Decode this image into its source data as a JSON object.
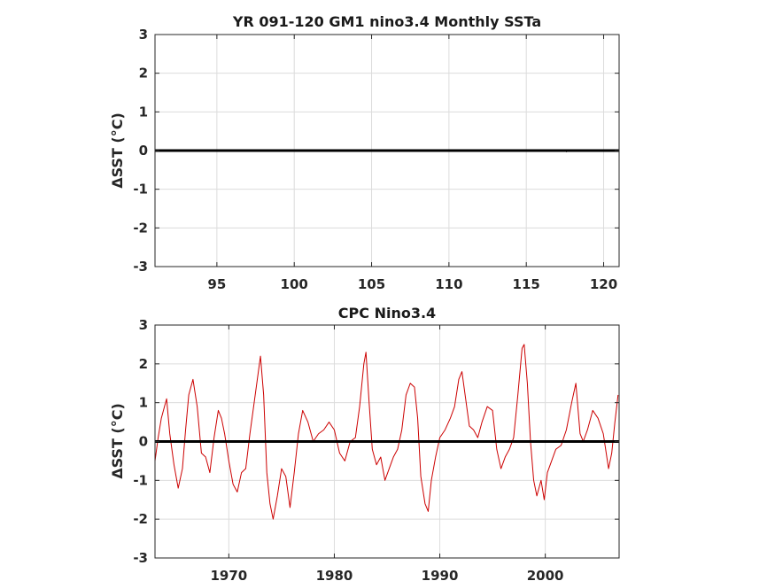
{
  "chart_data": [
    {
      "type": "line",
      "title": "YR 091-120 GM1 nino3.4 Monthly SSTa",
      "ylabel": "ΔSST (°C)",
      "xlim": [
        91,
        121
      ],
      "ylim": [
        -3,
        3
      ],
      "xticks": [
        95,
        100,
        105,
        110,
        115,
        120
      ],
      "yticks": [
        -3,
        -2,
        -1,
        0,
        1,
        2,
        3
      ],
      "grid": true,
      "zero_line": true,
      "series": [
        {
          "color": "#000000",
          "x": [
            91,
            117.5,
            117.6,
            117.7,
            121
          ],
          "y": [
            0,
            0,
            -0.03,
            0,
            0
          ]
        }
      ]
    },
    {
      "type": "line",
      "title": "CPC Nino3.4",
      "ylabel": "ΔSST (°C)",
      "xlim": [
        1963,
        2007
      ],
      "ylim": [
        -3,
        3
      ],
      "xticks": [
        1970,
        1980,
        1990,
        2000
      ],
      "yticks": [
        -3,
        -2,
        -1,
        0,
        1,
        2,
        3
      ],
      "grid": true,
      "zero_line": true,
      "series": [
        {
          "color": "#cc0000",
          "x": [
            1963.0,
            1963.3,
            1963.6,
            1963.9,
            1964.1,
            1964.4,
            1964.8,
            1965.2,
            1965.6,
            1965.9,
            1966.2,
            1966.6,
            1967.0,
            1967.4,
            1967.8,
            1968.2,
            1968.6,
            1969.0,
            1969.3,
            1969.6,
            1970.0,
            1970.4,
            1970.8,
            1971.2,
            1971.6,
            1972.0,
            1972.4,
            1972.8,
            1973.0,
            1973.3,
            1973.6,
            1973.9,
            1974.2,
            1974.6,
            1975.0,
            1975.4,
            1975.8,
            1976.2,
            1976.6,
            1977.0,
            1977.5,
            1978.0,
            1978.5,
            1979.0,
            1979.5,
            1980.0,
            1980.5,
            1981.0,
            1981.5,
            1982.0,
            1982.4,
            1982.8,
            1983.0,
            1983.3,
            1983.6,
            1984.0,
            1984.4,
            1984.8,
            1985.2,
            1985.6,
            1986.0,
            1986.4,
            1986.8,
            1987.2,
            1987.6,
            1987.9,
            1988.2,
            1988.6,
            1988.9,
            1989.2,
            1989.6,
            1990.0,
            1990.5,
            1991.0,
            1991.4,
            1991.8,
            1992.1,
            1992.4,
            1992.8,
            1993.2,
            1993.6,
            1994.0,
            1994.5,
            1995.0,
            1995.4,
            1995.8,
            1996.2,
            1996.6,
            1997.0,
            1997.4,
            1997.8,
            1998.0,
            1998.3,
            1998.6,
            1998.9,
            1999.2,
            1999.6,
            1999.9,
            2000.2,
            2000.6,
            2001.0,
            2001.5,
            2002.0,
            2002.5,
            2002.9,
            2003.3,
            2003.6,
            2004.0,
            2004.5,
            2005.0,
            2005.5,
            2006.0,
            2006.3,
            2006.6,
            2006.9
          ],
          "y": [
            -0.5,
            0.1,
            0.6,
            0.9,
            1.1,
            0.2,
            -0.6,
            -1.2,
            -0.7,
            0.3,
            1.2,
            1.6,
            0.9,
            -0.3,
            -0.4,
            -0.8,
            0.1,
            0.8,
            0.6,
            0.2,
            -0.5,
            -1.1,
            -1.3,
            -0.8,
            -0.7,
            0.2,
            1.0,
            1.8,
            2.2,
            1.2,
            -0.8,
            -1.6,
            -2.0,
            -1.4,
            -0.7,
            -0.9,
            -1.7,
            -0.8,
            0.2,
            0.8,
            0.5,
            0.0,
            0.2,
            0.3,
            0.5,
            0.3,
            -0.3,
            -0.5,
            0.0,
            0.1,
            0.9,
            2.0,
            2.3,
            1.0,
            -0.2,
            -0.6,
            -0.4,
            -1.0,
            -0.7,
            -0.4,
            -0.2,
            0.3,
            1.2,
            1.5,
            1.4,
            0.6,
            -0.9,
            -1.6,
            -1.8,
            -1.0,
            -0.4,
            0.1,
            0.3,
            0.6,
            0.9,
            1.6,
            1.8,
            1.2,
            0.4,
            0.3,
            0.1,
            0.5,
            0.9,
            0.8,
            -0.2,
            -0.7,
            -0.4,
            -0.2,
            0.1,
            1.2,
            2.4,
            2.5,
            1.5,
            0.0,
            -1.0,
            -1.4,
            -1.0,
            -1.5,
            -0.8,
            -0.5,
            -0.2,
            -0.1,
            0.3,
            1.0,
            1.5,
            0.2,
            0.0,
            0.3,
            0.8,
            0.6,
            0.2,
            -0.7,
            -0.3,
            0.5,
            1.2
          ]
        }
      ]
    }
  ]
}
